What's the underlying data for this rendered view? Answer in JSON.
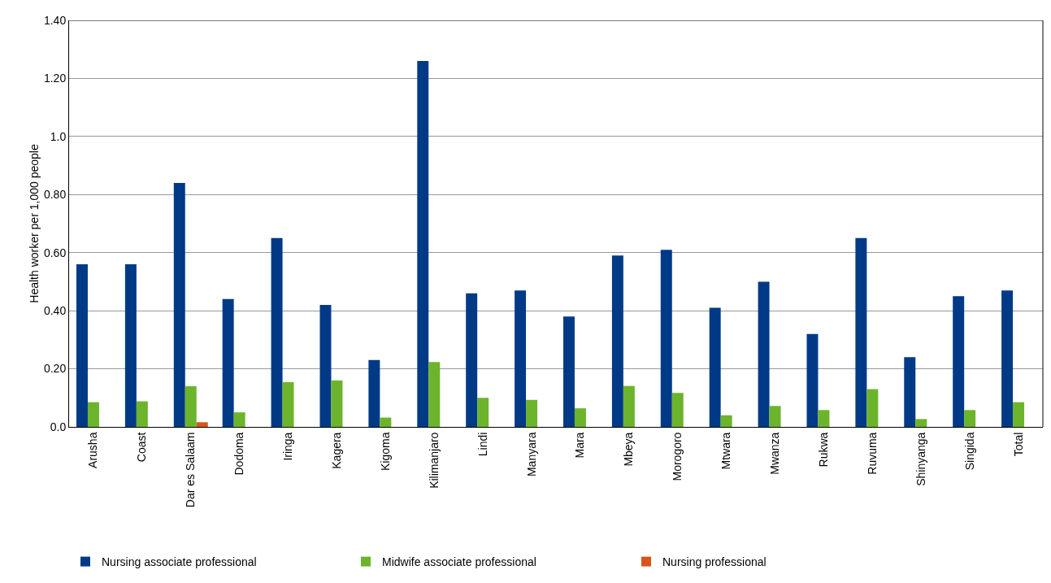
{
  "chart_data": {
    "type": "bar",
    "ylabel": "Health worker per 1,000 people",
    "categories": [
      "Arusha",
      "Coast",
      "Dar es Salaam",
      "Dodoma",
      "Iringa",
      "Kagera",
      "Kigoma",
      "Kilimanjaro",
      "Lindi",
      "Manyara",
      "Mara",
      "Mbeya",
      "Morogoro",
      "Mtwara",
      "Mwanza",
      "Rukwa",
      "Ruvuma",
      "Shinyanga",
      "Singida",
      "Total"
    ],
    "series": [
      {
        "name": "Nursing associate professional",
        "color": "#003a87",
        "values": [
          0.56,
          0.56,
          0.84,
          0.44,
          0.65,
          0.42,
          0.23,
          1.26,
          0.46,
          0.47,
          0.38,
          0.59,
          0.61,
          0.41,
          0.5,
          0.32,
          0.65,
          0.24,
          0.45,
          0.47
        ]
      },
      {
        "name": "Midwife associate professional",
        "color": "#6cb42c",
        "values": [
          0.085,
          0.088,
          0.14,
          0.05,
          0.154,
          0.16,
          0.032,
          0.223,
          0.1,
          0.093,
          0.064,
          0.141,
          0.117,
          0.04,
          0.072,
          0.058,
          0.13,
          0.027,
          0.058,
          0.085
        ]
      },
      {
        "name": "Nursing professional",
        "color": "#d9541c",
        "values": [
          null,
          null,
          0.016,
          null,
          null,
          null,
          null,
          null,
          null,
          null,
          null,
          null,
          null,
          null,
          null,
          null,
          null,
          null,
          null,
          null
        ]
      }
    ],
    "ylim": [
      0,
      1.4
    ],
    "yticks": [
      {
        "value": 0,
        "label": "0.0"
      },
      {
        "value": 0.2,
        "label": "0.20"
      },
      {
        "value": 0.4,
        "label": "0.40"
      },
      {
        "value": 0.6,
        "label": "0.60"
      },
      {
        "value": 0.8,
        "label": "0.80"
      },
      {
        "value": 1,
        "label": "1.0"
      },
      {
        "value": 1.2,
        "label": "1.20"
      },
      {
        "value": 1.4,
        "label": "1.40"
      }
    ],
    "grid": "y",
    "legend": "bottom"
  }
}
